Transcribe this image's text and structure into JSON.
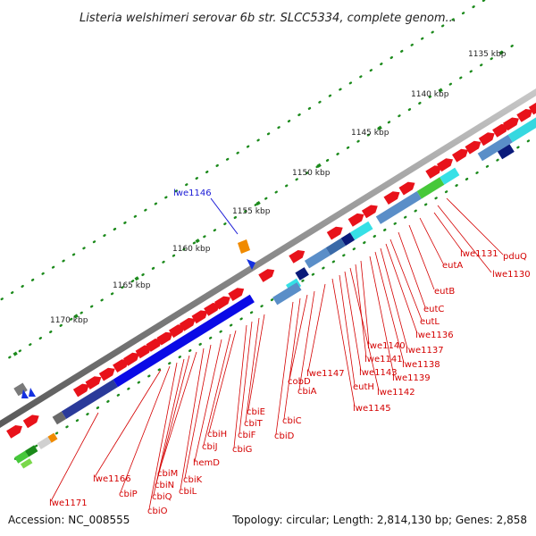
{
  "title": "Listeria welshimeri serovar 6b str. SLCC5334, complete genom...",
  "footer": {
    "accession": "Accession: NC_008555",
    "topology": "Topology: circular; Length: 2,814,130 bp; Genes: 2,858"
  },
  "ticks": [
    "1135 kbp",
    "1140 kbp",
    "1145 kbp",
    "1150 kbp",
    "1155 kbp",
    "1160 kbp",
    "1165 kbp",
    "1170 kbp"
  ],
  "highlight_label": "lwe1146",
  "gene_labels": [
    "pduQ",
    "lwe1130",
    "lwe1131",
    "eutA",
    "eutB",
    "eutC",
    "eutL",
    "lwe1136",
    "lwe1137",
    "lwe1138",
    "lwe1139",
    "lwe1140",
    "lwe1141",
    "lwe1142",
    "lwe1143",
    "eutH",
    "lwe1145",
    "lwe1147",
    "cbiA",
    "cobD",
    "cbiC",
    "cbiD",
    "cbiE",
    "cbiT",
    "cbiF",
    "cbiG",
    "cbiH",
    "cbiJ",
    "hemD",
    "cbiK",
    "cbiL",
    "cbiM",
    "cbiN",
    "cbiQ",
    "cbiO",
    "cbiP",
    "lwe1166",
    "lwe1171"
  ],
  "colors": {
    "label_red": "#d40000",
    "label_blue": "#1a1ad6",
    "backbone": "#8a8a8a",
    "gene_red": "#e8121a",
    "tick_green": "#1c8a1c"
  }
}
